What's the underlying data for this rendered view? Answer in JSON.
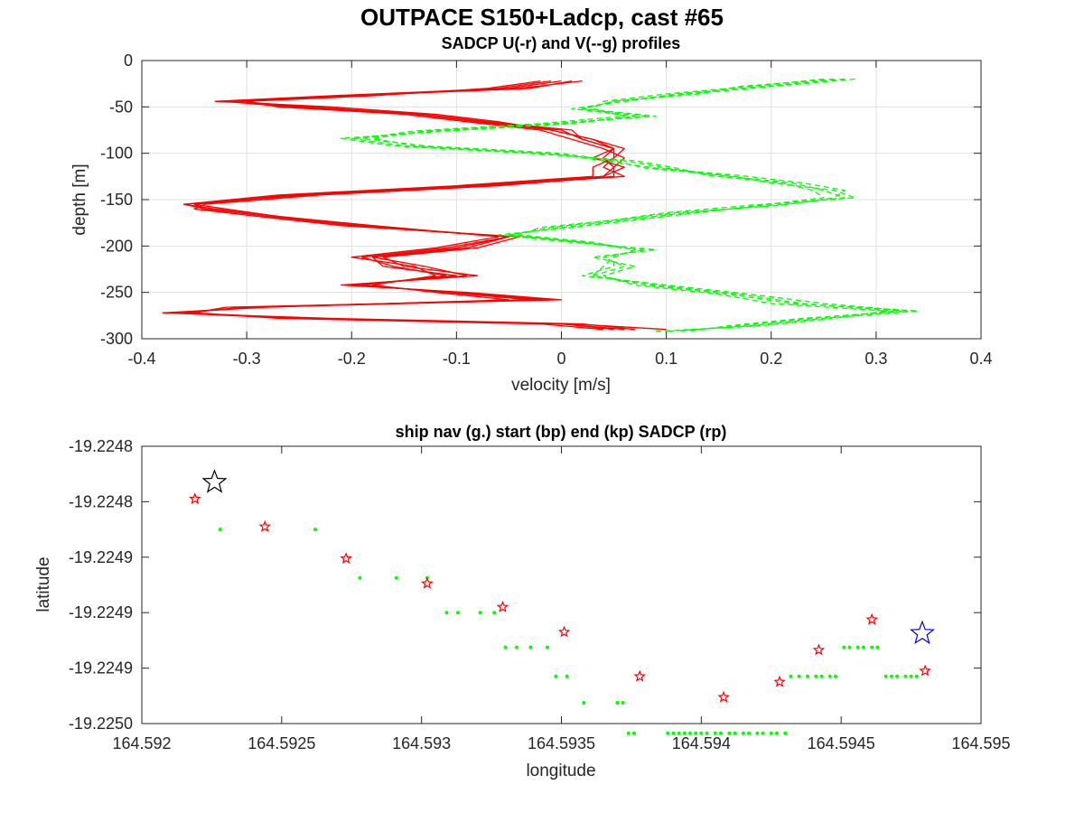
{
  "figure": {
    "title": "OUTPACE S150+Ladcp, cast #65"
  },
  "chart_data": [
    {
      "type": "line",
      "title": "SADCP U(-r) and V(--g) profiles",
      "xlabel": "velocity [m/s]",
      "ylabel": "depth [m]",
      "xlim": [
        -0.4,
        0.4
      ],
      "ylim": [
        -300,
        0
      ],
      "xticks": [
        "-0.4",
        "-0.3",
        "-0.2",
        "-0.1",
        "0",
        "0.1",
        "0.2",
        "0.3",
        "0.4"
      ],
      "yticks": [
        "0",
        "-50",
        "-100",
        "-150",
        "-200",
        "-250",
        "-300"
      ],
      "grid": true,
      "series": [
        {
          "style": "solid",
          "color": "#ff0000",
          "depth": [
            -22,
            -30,
            -38,
            -44,
            -50,
            -58,
            -66,
            -75,
            -85,
            -95,
            -105,
            -115,
            -125,
            -135,
            -145,
            -155,
            -160,
            -168,
            -178,
            -190,
            -202,
            -212,
            -222,
            -232,
            -242,
            -250,
            -258,
            -266,
            -272,
            -278,
            -284,
            -290
          ],
          "profiles": [
            [
              0.01,
              -0.03,
              -0.2,
              -0.32,
              -0.25,
              -0.14,
              -0.08,
              0.0,
              0.02,
              0.05,
              0.04,
              0.05,
              0.04,
              -0.08,
              -0.25,
              -0.35,
              -0.34,
              -0.28,
              -0.2,
              -0.05,
              -0.1,
              -0.18,
              -0.17,
              -0.1,
              -0.2,
              -0.1,
              -0.02,
              -0.3,
              -0.37,
              -0.25,
              0.0,
              0.05
            ],
            [
              0.0,
              -0.05,
              -0.22,
              -0.33,
              -0.22,
              -0.12,
              -0.06,
              -0.01,
              0.03,
              0.06,
              0.05,
              0.03,
              0.03,
              -0.1,
              -0.27,
              -0.36,
              -0.33,
              -0.27,
              -0.18,
              -0.06,
              -0.12,
              -0.2,
              -0.14,
              -0.12,
              -0.18,
              -0.12,
              -0.05,
              -0.28,
              -0.38,
              -0.22,
              0.02,
              0.07
            ],
            [
              -0.02,
              -0.07,
              -0.18,
              -0.3,
              -0.27,
              -0.15,
              -0.09,
              -0.02,
              0.01,
              0.04,
              0.06,
              0.05,
              0.05,
              -0.06,
              -0.23,
              -0.34,
              -0.35,
              -0.29,
              -0.21,
              -0.04,
              -0.08,
              -0.17,
              -0.15,
              -0.08,
              -0.21,
              -0.09,
              0.0,
              -0.32,
              -0.35,
              -0.27,
              -0.02,
              0.04
            ],
            [
              0.02,
              -0.04,
              -0.21,
              -0.31,
              -0.24,
              -0.13,
              -0.07,
              0.01,
              0.02,
              0.05,
              0.03,
              0.06,
              0.04,
              -0.09,
              -0.26,
              -0.35,
              -0.32,
              -0.27,
              -0.19,
              -0.05,
              -0.11,
              -0.19,
              -0.16,
              -0.11,
              -0.19,
              -0.11,
              -0.03,
              -0.3,
              -0.36,
              -0.24,
              0.01,
              0.1
            ],
            [
              -0.01,
              -0.06,
              -0.19,
              -0.32,
              -0.26,
              -0.14,
              -0.08,
              -0.01,
              0.03,
              0.05,
              0.05,
              0.04,
              0.06,
              -0.07,
              -0.24,
              -0.36,
              -0.34,
              -0.28,
              -0.2,
              -0.05,
              -0.09,
              -0.18,
              -0.13,
              -0.09,
              -0.2,
              -0.1,
              -0.01,
              -0.29,
              -0.37,
              -0.26,
              0.0,
              0.06
            ]
          ]
        },
        {
          "style": "dashed",
          "color": "#00ff00",
          "depth": [
            -20,
            -28,
            -36,
            -44,
            -52,
            -60,
            -68,
            -76,
            -84,
            -92,
            -100,
            -108,
            -116,
            -124,
            -132,
            -140,
            -148,
            -156,
            -164,
            -172,
            -180,
            -188,
            -196,
            -204,
            -212,
            -222,
            -232,
            -242,
            -252,
            -262,
            -270,
            -278,
            -286,
            -292
          ],
          "profiles": [
            [
              0.28,
              0.2,
              0.12,
              0.05,
              0.02,
              0.08,
              0.0,
              -0.12,
              -0.2,
              -0.15,
              -0.02,
              0.06,
              0.1,
              0.15,
              0.22,
              0.25,
              0.27,
              0.2,
              0.12,
              0.06,
              0.0,
              -0.05,
              0.02,
              0.08,
              0.04,
              0.06,
              0.03,
              0.08,
              0.16,
              0.22,
              0.34,
              0.25,
              0.18,
              0.1
            ],
            [
              0.25,
              0.18,
              0.1,
              0.04,
              0.03,
              0.06,
              -0.02,
              -0.14,
              -0.19,
              -0.13,
              0.0,
              0.05,
              0.08,
              0.16,
              0.2,
              0.26,
              0.28,
              0.18,
              0.1,
              0.05,
              -0.02,
              -0.04,
              0.03,
              0.07,
              0.05,
              0.05,
              0.02,
              0.1,
              0.18,
              0.25,
              0.33,
              0.23,
              0.16,
              0.12
            ],
            [
              0.27,
              0.19,
              0.11,
              0.06,
              0.01,
              0.07,
              0.01,
              -0.11,
              -0.21,
              -0.16,
              -0.03,
              0.07,
              0.11,
              0.14,
              0.21,
              0.24,
              0.25,
              0.19,
              0.13,
              0.07,
              0.01,
              -0.06,
              0.01,
              0.09,
              0.03,
              0.07,
              0.04,
              0.07,
              0.15,
              0.2,
              0.31,
              0.26,
              0.19,
              0.09
            ],
            [
              0.26,
              0.17,
              0.13,
              0.05,
              0.02,
              0.09,
              -0.01,
              -0.13,
              -0.18,
              -0.14,
              -0.01,
              0.04,
              0.09,
              0.17,
              0.23,
              0.27,
              0.26,
              0.21,
              0.11,
              0.05,
              -0.01,
              -0.05,
              0.02,
              0.07,
              0.05,
              0.04,
              0.03,
              0.09,
              0.17,
              0.23,
              0.32,
              0.24,
              0.17,
              0.11
            ]
          ]
        }
      ]
    },
    {
      "type": "scatter",
      "title": "ship nav (g.) start (bp) end (kp) SADCP (rp)",
      "xlabel": "longitude",
      "ylabel": "latitude",
      "xlim": [
        164.592,
        164.595
      ],
      "ylim": [
        -19.225,
        -19.2248
      ],
      "xticks": [
        "164.592",
        "164.5925",
        "164.593",
        "164.5935",
        "164.594",
        "164.5945",
        "164.595"
      ],
      "yticks": [
        "-19.2248",
        "-19.2248",
        "-19.2249",
        "-19.2249",
        "-19.2249",
        "-19.2250"
      ],
      "grid": false,
      "ship_nav": {
        "color": "#00ff00",
        "lon": [
          164.59228,
          164.59262,
          164.59278,
          164.59291,
          164.59302,
          164.59309,
          164.59313,
          164.59321,
          164.59326,
          164.5933,
          164.59334,
          164.59339,
          164.59345,
          164.59348,
          164.59352,
          164.59358,
          164.5937,
          164.59372,
          164.59374,
          164.59376,
          164.59388,
          164.5939,
          164.59392,
          164.59394,
          164.59396,
          164.59398,
          164.594,
          164.59402,
          164.59405,
          164.59407,
          164.5941,
          164.59412,
          164.59415,
          164.59417,
          164.5942,
          164.59422,
          164.59425,
          164.59427,
          164.5943,
          164.59432,
          164.59435,
          164.59438,
          164.59441,
          164.59443,
          164.59446,
          164.59448,
          164.59451,
          164.59453,
          164.59456,
          164.59458,
          164.59461,
          164.59463,
          164.59466,
          164.59468,
          164.5947,
          164.59473,
          164.59475,
          164.59477
        ],
        "lat": [
          -19.22486,
          -19.22486,
          -19.224895,
          -19.224895,
          -19.224895,
          -19.22492,
          -19.22492,
          -19.22492,
          -19.22492,
          -19.224945,
          -19.224945,
          -19.224945,
          -19.224945,
          -19.224966,
          -19.224966,
          -19.224985,
          -19.224985,
          -19.224985,
          -19.225007,
          -19.225007,
          -19.225007,
          -19.225007,
          -19.225007,
          -19.225007,
          -19.225007,
          -19.225007,
          -19.225007,
          -19.225007,
          -19.225007,
          -19.225007,
          -19.225007,
          -19.225007,
          -19.225007,
          -19.225007,
          -19.225007,
          -19.225007,
          -19.225007,
          -19.225007,
          -19.225007,
          -19.224966,
          -19.224966,
          -19.224966,
          -19.224966,
          -19.224966,
          -19.224966,
          -19.224966,
          -19.224945,
          -19.224945,
          -19.224945,
          -19.224945,
          -19.224945,
          -19.224945,
          -19.224966,
          -19.224966,
          -19.224966,
          -19.224966,
          -19.224966,
          -19.224966
        ]
      },
      "sadcp": {
        "color": "#ff0000",
        "lon": [
          164.59219,
          164.59244,
          164.59273,
          164.59302,
          164.59329,
          164.59351,
          164.59378,
          164.59408,
          164.59428,
          164.59442,
          164.59461,
          164.5948
        ],
        "lat": [
          -19.224838,
          -19.224858,
          -19.224881,
          -19.224899,
          -19.224916,
          -19.224934,
          -19.224966,
          -19.224981,
          -19.22497,
          -19.224947,
          -19.224925,
          -19.224962
        ]
      },
      "start": {
        "color": "#000000",
        "lon": 164.59226,
        "lat": -19.224826
      },
      "end": {
        "color": "#0000cc",
        "lon": 164.59479,
        "lat": -19.224935
      }
    }
  ]
}
